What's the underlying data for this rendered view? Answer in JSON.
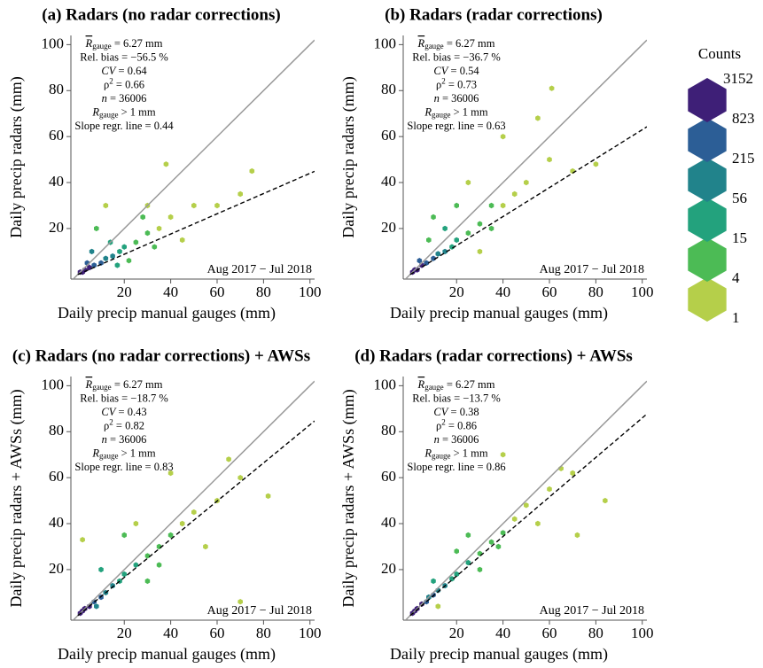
{
  "chart_data": [
    {
      "type": "hexbin",
      "title": "(a) Radars (no radar corrections)",
      "x_label": "Daily precip manual gauges (mm)",
      "y_label": "Daily precip radars (mm)",
      "xlim": [
        -3,
        102
      ],
      "ylim": [
        -2,
        104
      ],
      "xticks": [
        20,
        40,
        60,
        80,
        100
      ],
      "yticks": [
        20,
        40,
        60,
        80,
        100
      ],
      "period": "Aug 2017 − Jul 2018",
      "stats": [
        [
          {
            "text": "R",
            "style": "over"
          },
          {
            "text": "gauge",
            "style": "sub"
          },
          {
            "text": " = 6.27 mm"
          }
        ],
        [
          {
            "text": "Rel. bias = −56.5 %"
          }
        ],
        [
          {
            "text": "CV",
            "style": "italic"
          },
          {
            "text": " = 0.64"
          }
        ],
        [
          {
            "text": "ρ"
          },
          {
            "text": "2",
            "style": "sup"
          },
          {
            "text": " = 0.66"
          }
        ],
        [
          {
            "text": "n",
            "style": "italic"
          },
          {
            "text": " = 36006"
          }
        ],
        [
          {
            "text": "R",
            "style": "italic"
          },
          {
            "text": "gauge",
            "style": "sub"
          },
          {
            "text": " > 1 mm"
          }
        ]
      ],
      "slope_label": "Slope regr. line = ",
      "slope": 0.44,
      "x": [
        1,
        2,
        3,
        5,
        7,
        10,
        12,
        15,
        18,
        20,
        25,
        30,
        35,
        40,
        30,
        38,
        50,
        60,
        70,
        12,
        8,
        22,
        45,
        28,
        75,
        4,
        6,
        14,
        17,
        33
      ],
      "y": [
        1,
        1,
        2,
        3,
        4,
        5,
        7,
        8,
        10,
        12,
        14,
        18,
        20,
        25,
        30,
        48,
        30,
        30,
        35,
        30,
        20,
        6,
        15,
        25,
        45,
        5,
        10,
        14,
        4,
        12
      ],
      "counts": [
        3152,
        3152,
        823,
        823,
        215,
        215,
        56,
        56,
        15,
        15,
        4,
        4,
        1,
        1,
        1,
        1,
        1,
        1,
        1,
        1,
        4,
        4,
        1,
        4,
        1,
        215,
        56,
        15,
        15,
        4
      ]
    },
    {
      "type": "hexbin",
      "title": "(b) Radars (radar corrections)",
      "x_label": "Daily precip manual gauges (mm)",
      "y_label": "Daily precip radars (mm)",
      "xlim": [
        -3,
        102
      ],
      "ylim": [
        -2,
        104
      ],
      "xticks": [
        20,
        40,
        60,
        80,
        100
      ],
      "yticks": [
        20,
        40,
        60,
        80,
        100
      ],
      "period": "Aug 2017 − Jul 2018",
      "stats": [
        [
          {
            "text": "R",
            "style": "over"
          },
          {
            "text": "gauge",
            "style": "sub"
          },
          {
            "text": " = 6.27 mm"
          }
        ],
        [
          {
            "text": "Rel. bias = −36.7 %"
          }
        ],
        [
          {
            "text": "CV",
            "style": "italic"
          },
          {
            "text": " = 0.54"
          }
        ],
        [
          {
            "text": "ρ"
          },
          {
            "text": "2",
            "style": "sup"
          },
          {
            "text": " = 0.73"
          }
        ],
        [
          {
            "text": "n",
            "style": "italic"
          },
          {
            "text": " = 36006"
          }
        ],
        [
          {
            "text": "R",
            "style": "italic"
          },
          {
            "text": "gauge",
            "style": "sub"
          },
          {
            "text": " > 1 mm"
          }
        ]
      ],
      "slope_label": "Slope regr. line = ",
      "slope": 0.63,
      "x": [
        1,
        2,
        3,
        5,
        7,
        10,
        12,
        15,
        18,
        20,
        25,
        30,
        35,
        40,
        45,
        50,
        60,
        70,
        61,
        10,
        25,
        40,
        55,
        30,
        80,
        20,
        15,
        8,
        4,
        35
      ],
      "y": [
        1,
        2,
        2,
        4,
        5,
        7,
        9,
        10,
        12,
        15,
        18,
        22,
        30,
        30,
        35,
        40,
        50,
        45,
        81,
        25,
        40,
        60,
        68,
        10,
        48,
        30,
        20,
        15,
        6,
        20
      ],
      "counts": [
        3152,
        3152,
        823,
        823,
        215,
        215,
        56,
        56,
        15,
        15,
        4,
        4,
        4,
        1,
        1,
        1,
        1,
        1,
        1,
        4,
        1,
        1,
        1,
        1,
        1,
        4,
        15,
        4,
        215,
        4
      ]
    },
    {
      "type": "hexbin",
      "title": "(c) Radars (no radar corrections) + AWSs",
      "x_label": "Daily precip manual gauges (mm)",
      "y_label": "Daily precip radars + AWSs (mm)",
      "xlim": [
        -3,
        102
      ],
      "ylim": [
        -2,
        104
      ],
      "xticks": [
        20,
        40,
        60,
        80,
        100
      ],
      "yticks": [
        20,
        40,
        60,
        80,
        100
      ],
      "period": "Aug 2017 − Jul 2018",
      "stats": [
        [
          {
            "text": "R",
            "style": "over"
          },
          {
            "text": "gauge",
            "style": "sub"
          },
          {
            "text": " = 6.27 mm"
          }
        ],
        [
          {
            "text": "Rel. bias = −18.7 %"
          }
        ],
        [
          {
            "text": "CV",
            "style": "italic"
          },
          {
            "text": " = 0.43"
          }
        ],
        [
          {
            "text": "ρ"
          },
          {
            "text": "2",
            "style": "sup"
          },
          {
            "text": " = 0.82"
          }
        ],
        [
          {
            "text": "n",
            "style": "italic"
          },
          {
            "text": " = 36006"
          }
        ],
        [
          {
            "text": "R",
            "style": "italic"
          },
          {
            "text": "gauge",
            "style": "sub"
          },
          {
            "text": " > 1 mm"
          }
        ]
      ],
      "slope_label": "Slope regr. line = ",
      "slope": 0.83,
      "x": [
        1,
        2,
        3,
        5,
        7,
        10,
        12,
        15,
        18,
        20,
        25,
        30,
        35,
        40,
        45,
        50,
        60,
        70,
        82,
        70,
        40,
        20,
        10,
        30,
        55,
        25,
        2,
        65,
        8,
        35
      ],
      "y": [
        1,
        2,
        3,
        4,
        6,
        8,
        10,
        13,
        15,
        18,
        22,
        26,
        30,
        35,
        40,
        45,
        50,
        60,
        52,
        6,
        62,
        35,
        20,
        15,
        30,
        40,
        33,
        68,
        4,
        22
      ],
      "counts": [
        3152,
        3152,
        823,
        823,
        215,
        215,
        56,
        56,
        15,
        15,
        15,
        4,
        4,
        4,
        1,
        1,
        1,
        1,
        1,
        1,
        1,
        4,
        15,
        4,
        1,
        1,
        1,
        1,
        56,
        4
      ]
    },
    {
      "type": "hexbin",
      "title": "(d) Radars (radar corrections) + AWSs",
      "x_label": "Daily precip manual gauges (mm)",
      "y_label": "Daily precip radars + AWSs (mm)",
      "xlim": [
        -3,
        102
      ],
      "ylim": [
        -2,
        104
      ],
      "xticks": [
        20,
        40,
        60,
        80,
        100
      ],
      "yticks": [
        20,
        40,
        60,
        80,
        100
      ],
      "period": "Aug 2017 − Jul 2018",
      "stats": [
        [
          {
            "text": "R",
            "style": "over"
          },
          {
            "text": "gauge",
            "style": "sub"
          },
          {
            "text": " = 6.27 mm"
          }
        ],
        [
          {
            "text": "Rel. bias = −13.7 %"
          }
        ],
        [
          {
            "text": "CV",
            "style": "italic"
          },
          {
            "text": " = 0.38"
          }
        ],
        [
          {
            "text": "ρ"
          },
          {
            "text": "2",
            "style": "sup"
          },
          {
            "text": " = 0.86"
          }
        ],
        [
          {
            "text": "n",
            "style": "italic"
          },
          {
            "text": " = 36006"
          }
        ],
        [
          {
            "text": "R",
            "style": "italic"
          },
          {
            "text": "gauge",
            "style": "sub"
          },
          {
            "text": " > 1 mm"
          }
        ]
      ],
      "slope_label": "Slope regr. line = ",
      "slope": 0.86,
      "x": [
        1,
        2,
        3,
        5,
        7,
        10,
        12,
        15,
        18,
        20,
        25,
        30,
        35,
        40,
        45,
        50,
        60,
        70,
        84,
        72,
        40,
        20,
        10,
        30,
        55,
        25,
        12,
        65,
        8,
        38
      ],
      "y": [
        1,
        2,
        3,
        5,
        6,
        9,
        11,
        13,
        16,
        18,
        23,
        27,
        32,
        36,
        42,
        48,
        55,
        62,
        50,
        35,
        70,
        28,
        15,
        20,
        40,
        35,
        4,
        64,
        8,
        30
      ],
      "counts": [
        3152,
        3152,
        823,
        823,
        215,
        215,
        56,
        56,
        15,
        15,
        15,
        4,
        4,
        4,
        1,
        1,
        1,
        1,
        1,
        1,
        1,
        4,
        15,
        4,
        1,
        4,
        1,
        1,
        56,
        4
      ]
    }
  ],
  "colorbar": {
    "title": "Counts",
    "bins": [
      1,
      4,
      15,
      56,
      215,
      823,
      3152
    ],
    "colors": [
      "#b5cf4a",
      "#4cbb55",
      "#23a27d",
      "#21838b",
      "#2c5e96",
      "#3e1f77"
    ]
  }
}
